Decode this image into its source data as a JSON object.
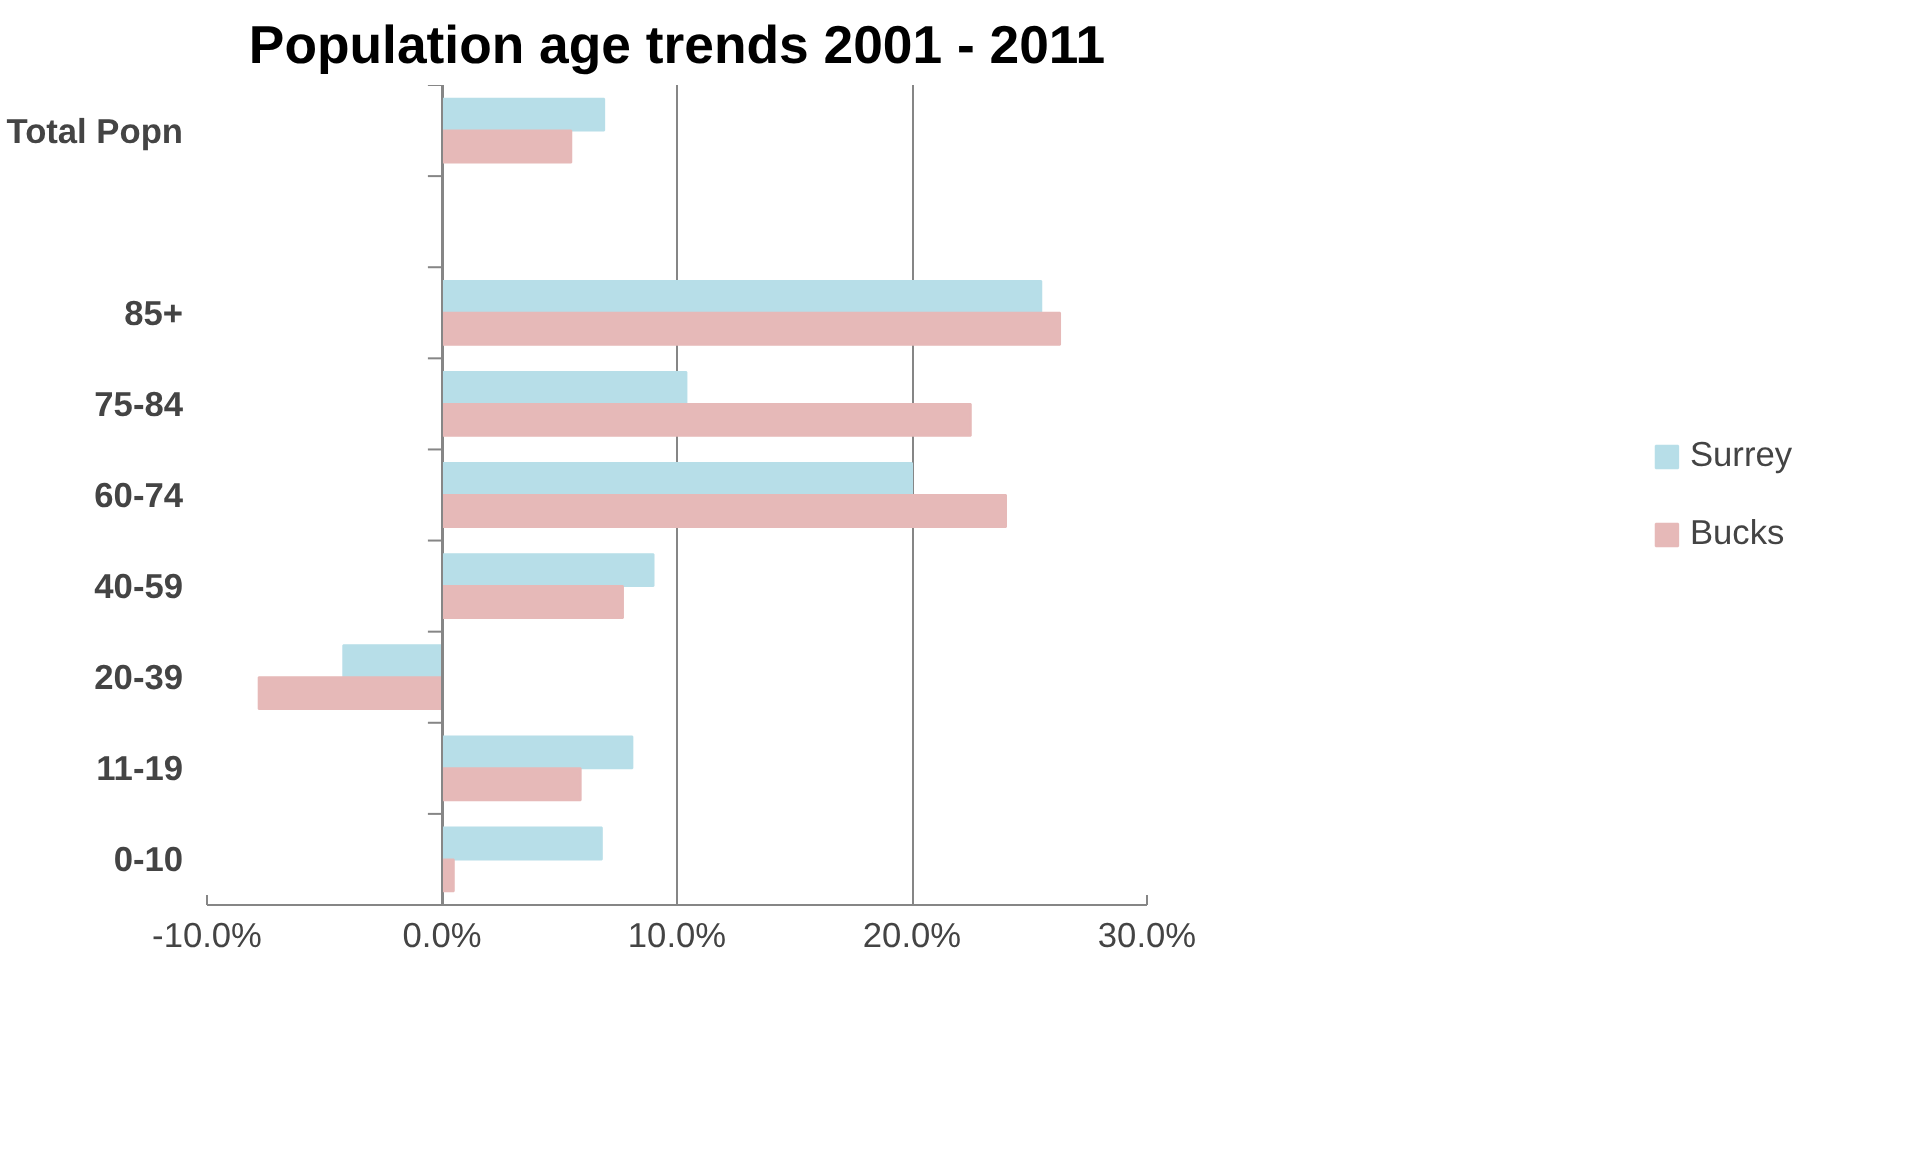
{
  "chart_data": {
    "type": "bar",
    "orientation": "horizontal",
    "title": "Population age trends 2001 - 2011",
    "categories": [
      "Total Popn",
      null,
      "85+",
      "75-84",
      "60-74",
      "40-59",
      "20-39",
      "11-19",
      "0-10"
    ],
    "series": [
      {
        "name": "Surrey",
        "color": "#b7dee8",
        "values": [
          6.9,
          null,
          25.5,
          10.4,
          20.0,
          9.0,
          -4.2,
          8.1,
          6.8
        ]
      },
      {
        "name": "Bucks",
        "color": "#e6b9b8",
        "values": [
          5.5,
          null,
          26.3,
          22.5,
          24.0,
          7.7,
          -7.8,
          5.9,
          0.5
        ]
      }
    ],
    "xlim": [
      -10,
      30
    ],
    "xticks": [
      {
        "value": -10,
        "label": "-10.0%"
      },
      {
        "value": 0,
        "label": "0.0%"
      },
      {
        "value": 10,
        "label": "10.0%"
      },
      {
        "value": 20,
        "label": "20.0%"
      },
      {
        "value": 30,
        "label": "30.0%"
      }
    ],
    "grid": "x",
    "legend": "right"
  }
}
